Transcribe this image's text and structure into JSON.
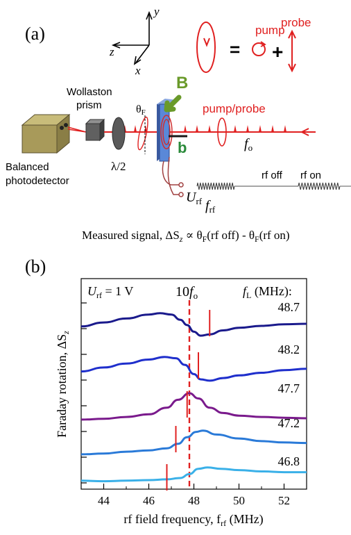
{
  "panel_a": {
    "label": "(a)",
    "axes": {
      "y": "y",
      "z": "z",
      "x": "x"
    },
    "legend": {
      "pump": "pump",
      "probe": "probe",
      "equals": "=",
      "plus": "+"
    },
    "labels": {
      "wollaston_line1": "Wollaston",
      "wollaston_line2": "prism",
      "detector_line1": "Balanced",
      "detector_line2": "photodetector",
      "halfwave": "λ/2",
      "theta_f": "θ",
      "theta_f_sub": "F",
      "b_big": "B",
      "b_small": "b",
      "pump_probe": "pump/probe",
      "f_o": "f",
      "f_o_sub": "o",
      "u_rf": "U",
      "u_rf_sub": "rf",
      "f_rf": "f",
      "f_rf_sub": "rf",
      "rf_off": "rf off",
      "rf_on": "rf on"
    },
    "signal_text": "Measured signal, ΔS",
    "signal_sub": "z",
    "signal_rest": " ∝ θ",
    "signal_f1": "F",
    "signal_mid": "(rf off) - θ",
    "signal_f2": "F",
    "signal_end": "(rf on)"
  },
  "panel_b": {
    "label": "(b)",
    "urf_label": "U",
    "urf_sub": "rf",
    "urf_value": " = 1 V",
    "ten_fo": "10",
    "ten_fo_f": "f",
    "ten_fo_sub": "o",
    "fl_header": "f",
    "fl_sub": "L",
    "fl_unit": " (MHz):"
  },
  "chart_data": {
    "type": "line",
    "xlabel": "rf field frequency, f",
    "xlabel_sub": "rf",
    "xlabel_unit": " (MHz)",
    "ylabel": "Faraday rotation, ΔS",
    "ylabel_sub": "z",
    "xlim": [
      43,
      53
    ],
    "xticks": [
      "44",
      "46",
      "48",
      "50",
      "52"
    ],
    "ten_fo_position": 47.8,
    "series": [
      {
        "name": "48.7",
        "color": "#1a1a8c",
        "marker_x": 48.7,
        "offset": 4,
        "points": [
          [
            43,
            -0.1
          ],
          [
            44,
            0.05
          ],
          [
            45,
            0.2
          ],
          [
            46,
            0.35
          ],
          [
            46.5,
            0.4
          ],
          [
            47,
            0.35
          ],
          [
            47.4,
            0.15
          ],
          [
            47.7,
            -0.05
          ],
          [
            48,
            -0.3
          ],
          [
            48.3,
            -0.45
          ],
          [
            48.7,
            -0.4
          ],
          [
            49.3,
            -0.25
          ],
          [
            50,
            -0.15
          ],
          [
            51,
            -0.08
          ],
          [
            52,
            -0.02
          ],
          [
            53,
            0.0
          ]
        ]
      },
      {
        "name": "48.2",
        "color": "#1f2fcc",
        "marker_x": 48.2,
        "offset": 3,
        "points": [
          [
            43,
            -0.2
          ],
          [
            44,
            -0.05
          ],
          [
            45,
            0.1
          ],
          [
            46,
            0.25
          ],
          [
            46.7,
            0.35
          ],
          [
            47.2,
            0.3
          ],
          [
            47.6,
            0.05
          ],
          [
            48,
            -0.3
          ],
          [
            48.3,
            -0.5
          ],
          [
            48.7,
            -0.55
          ],
          [
            49.3,
            -0.45
          ],
          [
            50,
            -0.35
          ],
          [
            51,
            -0.25
          ],
          [
            52,
            -0.15
          ],
          [
            53,
            -0.1
          ]
        ]
      },
      {
        "name": "47.7",
        "color": "#7a1a8c",
        "marker_x": 47.7,
        "offset": 2,
        "points": [
          [
            43,
            -0.55
          ],
          [
            44,
            -0.52
          ],
          [
            45,
            -0.45
          ],
          [
            46,
            -0.35
          ],
          [
            46.8,
            -0.1
          ],
          [
            47.3,
            0.2
          ],
          [
            47.8,
            0.45
          ],
          [
            48.2,
            0.25
          ],
          [
            48.7,
            -0.1
          ],
          [
            49.3,
            -0.3
          ],
          [
            50,
            -0.4
          ],
          [
            51,
            -0.45
          ],
          [
            52,
            -0.48
          ],
          [
            53,
            -0.5
          ]
        ]
      },
      {
        "name": "47.2",
        "color": "#2a7ad8",
        "marker_x": 47.2,
        "offset": 1,
        "points": [
          [
            43,
            -0.55
          ],
          [
            44,
            -0.52
          ],
          [
            45,
            -0.45
          ],
          [
            46,
            -0.4
          ],
          [
            46.8,
            -0.32
          ],
          [
            47.3,
            -0.15
          ],
          [
            47.7,
            0.1
          ],
          [
            48.1,
            0.3
          ],
          [
            48.4,
            0.35
          ],
          [
            49,
            0.2
          ],
          [
            50,
            0.05
          ],
          [
            51,
            -0.05
          ],
          [
            52,
            -0.1
          ],
          [
            53,
            -0.12
          ]
        ]
      },
      {
        "name": "46.8",
        "color": "#3ab0e8",
        "marker_x": 46.8,
        "offset": 0,
        "points": [
          [
            43,
            -0.1
          ],
          [
            44,
            -0.12
          ],
          [
            45,
            -0.1
          ],
          [
            46,
            -0.08
          ],
          [
            46.8,
            -0.05
          ],
          [
            47.4,
            0.0
          ],
          [
            47.8,
            0.15
          ],
          [
            48.2,
            0.35
          ],
          [
            48.6,
            0.4
          ],
          [
            49.2,
            0.35
          ],
          [
            50,
            0.3
          ],
          [
            51,
            0.25
          ],
          [
            52,
            0.22
          ],
          [
            53,
            0.22
          ]
        ]
      }
    ]
  },
  "colors": {
    "red": "#e02020",
    "green": "#6a9a2a",
    "dark_green": "#2a8a3a",
    "detector": "#a89a5a",
    "prism": "#606060",
    "plate_blue": "#4a78c8"
  }
}
